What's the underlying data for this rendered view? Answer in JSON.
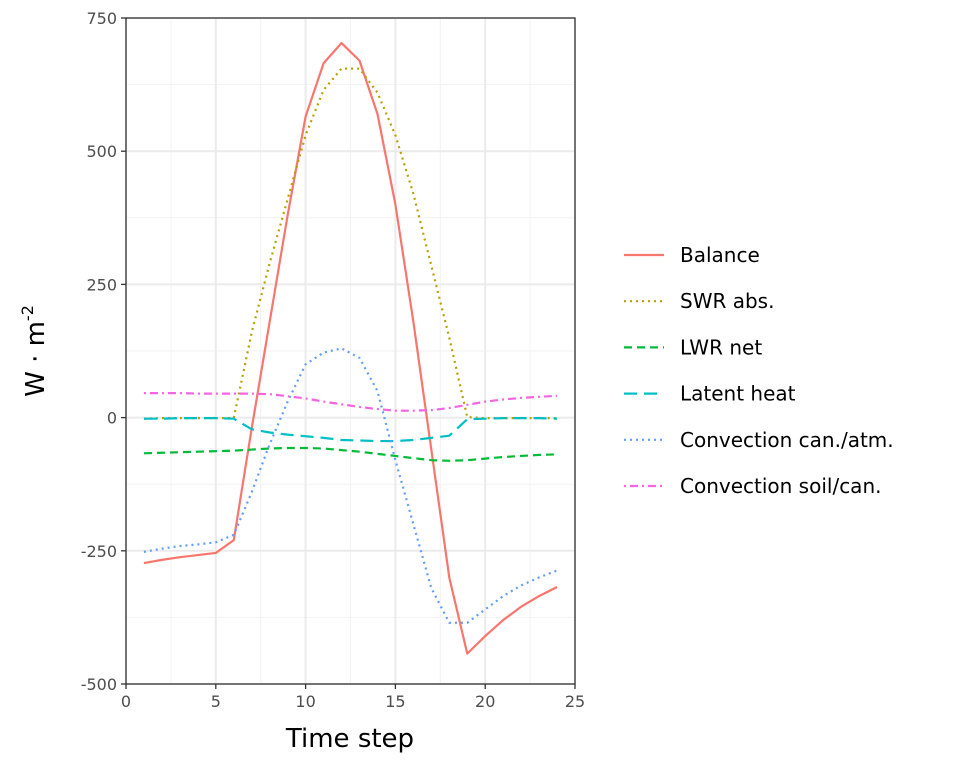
{
  "chart_data": {
    "type": "line",
    "title": "",
    "xlabel": "Time step",
    "ylabel_main": "W · m",
    "ylabel_exp": "-2",
    "xlim": [
      0,
      25
    ],
    "ylim": [
      -500,
      750
    ],
    "xticks": [
      0,
      5,
      10,
      15,
      20,
      25
    ],
    "xtick_labels": [
      "0",
      "5",
      "10",
      "15",
      "20",
      "25"
    ],
    "yticks": [
      -500,
      -250,
      0,
      250,
      500,
      750
    ],
    "ytick_labels": [
      "-500",
      "-250",
      "0",
      "250",
      "500",
      "750"
    ],
    "grid": true,
    "legend_position": "right",
    "x": [
      1,
      2,
      3,
      4,
      5,
      6,
      7,
      8,
      9,
      10,
      11,
      12,
      13,
      14,
      15,
      16,
      17,
      18,
      19,
      20,
      21,
      22,
      23,
      24
    ],
    "series": [
      {
        "name": "Balance",
        "color": "#F8766D",
        "dash": "solid",
        "values": [
          -273,
          -267,
          -262,
          -258,
          -254,
          -230,
          -20,
          180,
          380,
          565,
          665,
          703,
          670,
          570,
          400,
          180,
          -60,
          -300,
          -443,
          -410,
          -380,
          -355,
          -335,
          -318
        ]
      },
      {
        "name": "SWR abs.",
        "color": "#B79F00",
        "dash": "dotted",
        "values": [
          -2,
          -1,
          -1,
          -1,
          -1,
          -1,
          160,
          290,
          410,
          530,
          615,
          655,
          655,
          610,
          530,
          420,
          285,
          150,
          1,
          -1,
          -1,
          -1,
          -1,
          -1
        ]
      },
      {
        "name": "LWR net",
        "color": "#00BA38",
        "dash": "dashed",
        "values": [
          -67,
          -66,
          -65,
          -64,
          -63,
          -62,
          -60,
          -58,
          -57,
          -57,
          -58,
          -61,
          -64,
          -68,
          -72,
          -76,
          -80,
          -81,
          -80,
          -77,
          -74,
          -72,
          -70,
          -69
        ]
      },
      {
        "name": "Latent heat",
        "color": "#00BFC4",
        "dash": "longdash",
        "values": [
          -2,
          -2,
          -1,
          -1,
          -1,
          -2,
          -22,
          -28,
          -32,
          -35,
          -38,
          -42,
          -43,
          -44,
          -44,
          -42,
          -38,
          -34,
          -3,
          -2,
          -1,
          -1,
          -1,
          -2
        ]
      },
      {
        "name": "Convection can./atm.",
        "color": "#619CFF",
        "dash": "dotted",
        "values": [
          -252,
          -246,
          -241,
          -238,
          -234,
          -220,
          -140,
          -50,
          30,
          100,
          122,
          130,
          112,
          50,
          -80,
          -200,
          -320,
          -385,
          -385,
          -360,
          -335,
          -315,
          -300,
          -287
        ]
      },
      {
        "name": "Convection soil/can.",
        "color": "#F564E3",
        "dash": "dotdash",
        "values": [
          46,
          46,
          46,
          45,
          45,
          45,
          45,
          44,
          40,
          36,
          30,
          25,
          20,
          16,
          13,
          13,
          14,
          18,
          24,
          30,
          34,
          37,
          39,
          41
        ]
      }
    ]
  }
}
